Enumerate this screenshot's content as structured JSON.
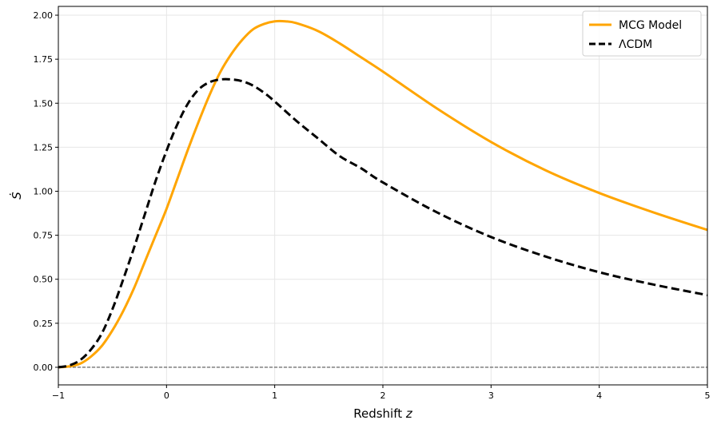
{
  "chart_data": {
    "type": "line",
    "xlabel": "Redshift z",
    "ylabel": "Ṡ",
    "xlim": [
      -1,
      5
    ],
    "ylim": [
      -0.1,
      2.05
    ],
    "xticks": [
      -1,
      0,
      1,
      2,
      3,
      4,
      5
    ],
    "yticks": [
      0.0,
      0.25,
      0.5,
      0.75,
      1.0,
      1.25,
      1.5,
      1.75,
      2.0
    ],
    "xtick_labels": [
      "−1",
      "0",
      "1",
      "2",
      "3",
      "4",
      "5"
    ],
    "ytick_labels": [
      "0.00",
      "0.25",
      "0.50",
      "0.75",
      "1.00",
      "1.25",
      "1.50",
      "1.75",
      "2.00"
    ],
    "grid": true,
    "legend_position": "top-right",
    "reference_line": {
      "y": 0,
      "style": "dashed",
      "color": "#555555"
    },
    "series": [
      {
        "name": "MCG Model",
        "color": "#FFA500",
        "style": "solid",
        "x": [
          -1.0,
          -0.9,
          -0.8,
          -0.7,
          -0.6,
          -0.5,
          -0.4,
          -0.3,
          -0.2,
          -0.1,
          0.0,
          0.1,
          0.2,
          0.3,
          0.4,
          0.5,
          0.6,
          0.7,
          0.8,
          0.9,
          1.0,
          1.1,
          1.2,
          1.4,
          1.6,
          1.8,
          2.0,
          2.5,
          3.0,
          3.5,
          4.0,
          4.5,
          5.0
        ],
        "y": [
          0.0,
          0.005,
          0.02,
          0.06,
          0.12,
          0.21,
          0.32,
          0.45,
          0.6,
          0.75,
          0.9,
          1.07,
          1.24,
          1.4,
          1.55,
          1.68,
          1.78,
          1.86,
          1.92,
          1.95,
          1.965,
          1.965,
          1.955,
          1.91,
          1.84,
          1.76,
          1.68,
          1.47,
          1.28,
          1.12,
          0.99,
          0.88,
          0.78
        ]
      },
      {
        "name": "ΛCDM",
        "color": "#000000",
        "style": "dashed",
        "x": [
          -1.0,
          -0.9,
          -0.8,
          -0.7,
          -0.6,
          -0.5,
          -0.4,
          -0.3,
          -0.2,
          -0.1,
          0.0,
          0.1,
          0.2,
          0.3,
          0.4,
          0.5,
          0.6,
          0.7,
          0.8,
          0.9,
          1.0,
          1.2,
          1.4,
          1.6,
          1.8,
          2.0,
          2.5,
          3.0,
          3.5,
          4.0,
          4.5,
          5.0
        ],
        "y": [
          0.0,
          0.01,
          0.04,
          0.1,
          0.19,
          0.33,
          0.5,
          0.68,
          0.87,
          1.06,
          1.23,
          1.38,
          1.5,
          1.58,
          1.62,
          1.635,
          1.635,
          1.625,
          1.6,
          1.56,
          1.51,
          1.4,
          1.3,
          1.2,
          1.13,
          1.05,
          0.88,
          0.74,
          0.63,
          0.54,
          0.47,
          0.41
        ]
      }
    ]
  }
}
